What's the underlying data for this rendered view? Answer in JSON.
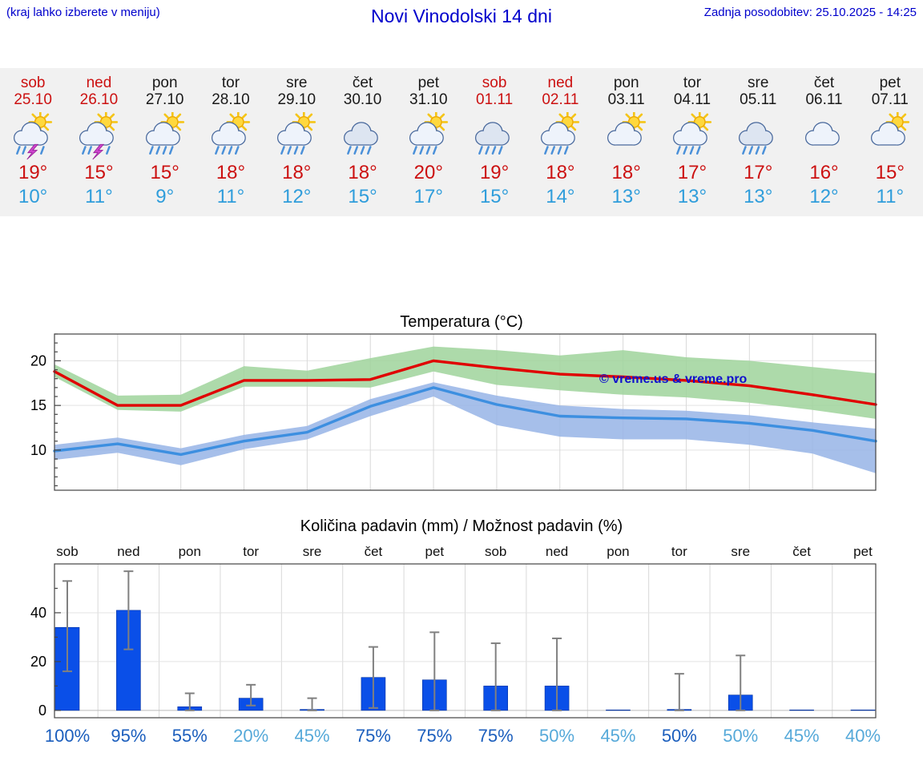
{
  "header": {
    "hint": "(kraj lahko izberete v meniju)",
    "title": "Novi Vinodolski 14 dni",
    "updated": "Zadnja posodobitev: 25.10.2025 - 14:25"
  },
  "colors": {
    "accent_blue": "#0000cc",
    "weekend_red": "#cc1111",
    "weekday_black": "#1a1a1a",
    "tmax_red": "#cc1111",
    "tmin_blue": "#2f9ddb",
    "strip_background": "#f1f1f1",
    "max_line_red": "#e00000",
    "min_line_blue": "#3d8fe0",
    "max_band_green": "#9fd49b",
    "min_band_blue": "#96b4e6",
    "bar_blue": "#0a4fe8",
    "whisker_gray": "#808080",
    "prob_dark_blue": "#1b5ebd",
    "prob_light_blue": "#56a9d9",
    "watermark_blue": "#1111cc"
  },
  "forecast": {
    "days": [
      {
        "name": "sob",
        "date": "25.10",
        "weekend": true,
        "icon": "sun-thunder-rain",
        "tmax": "19°",
        "tmin": "10°"
      },
      {
        "name": "ned",
        "date": "26.10",
        "weekend": true,
        "icon": "sun-thunder-rain",
        "tmax": "15°",
        "tmin": "11°"
      },
      {
        "name": "pon",
        "date": "27.10",
        "weekend": false,
        "icon": "sun-rain",
        "tmax": "15°",
        "tmin": "9°"
      },
      {
        "name": "tor",
        "date": "28.10",
        "weekend": false,
        "icon": "sun-rain",
        "tmax": "18°",
        "tmin": "11°"
      },
      {
        "name": "sre",
        "date": "29.10",
        "weekend": false,
        "icon": "sun-rain",
        "tmax": "18°",
        "tmin": "12°"
      },
      {
        "name": "čet",
        "date": "30.10",
        "weekend": false,
        "icon": "cloud-rain",
        "tmax": "18°",
        "tmin": "15°"
      },
      {
        "name": "pet",
        "date": "31.10",
        "weekend": false,
        "icon": "sun-rain",
        "tmax": "20°",
        "tmin": "17°"
      },
      {
        "name": "sob",
        "date": "01.11",
        "weekend": true,
        "icon": "cloud-rain",
        "tmax": "19°",
        "tmin": "15°"
      },
      {
        "name": "ned",
        "date": "02.11",
        "weekend": true,
        "icon": "sun-rain",
        "tmax": "18°",
        "tmin": "14°"
      },
      {
        "name": "pon",
        "date": "03.11",
        "weekend": false,
        "icon": "sun-cloud",
        "tmax": "18°",
        "tmin": "13°"
      },
      {
        "name": "tor",
        "date": "04.11",
        "weekend": false,
        "icon": "sun-rain",
        "tmax": "17°",
        "tmin": "13°"
      },
      {
        "name": "sre",
        "date": "05.11",
        "weekend": false,
        "icon": "cloud-rain",
        "tmax": "17°",
        "tmin": "13°"
      },
      {
        "name": "čet",
        "date": "06.11",
        "weekend": false,
        "icon": "cloud",
        "tmax": "16°",
        "tmin": "12°"
      },
      {
        "name": "pet",
        "date": "07.11",
        "weekend": false,
        "icon": "sun-cloud",
        "tmax": "15°",
        "tmin": "11°"
      }
    ]
  },
  "chart_data": [
    {
      "type": "line",
      "title": "Temperatura (°C)",
      "categories": [
        "sob",
        "ned",
        "pon",
        "tor",
        "sre",
        "čet",
        "pet",
        "sob",
        "ned",
        "pon",
        "tor",
        "sre",
        "čet",
        "pet"
      ],
      "series": [
        {
          "name": "max-temperature",
          "color": "#e00000",
          "values": [
            18.8,
            15.0,
            15.0,
            17.8,
            17.8,
            17.9,
            20.0,
            19.2,
            18.5,
            18.2,
            17.8,
            17.2,
            16.2,
            15.1
          ]
        },
        {
          "name": "min-temperature",
          "color": "#3d8fe0",
          "values": [
            9.9,
            10.7,
            9.5,
            11.0,
            12.0,
            14.9,
            17.0,
            15.1,
            13.8,
            13.6,
            13.5,
            13.0,
            12.2,
            11.0
          ]
        }
      ],
      "bands": [
        {
          "name": "max-temperature-range",
          "color": "#9fd49b",
          "opacity": 0.85,
          "upper": [
            19.6,
            16.1,
            16.2,
            19.4,
            18.9,
            20.3,
            21.6,
            21.2,
            20.6,
            21.2,
            20.4,
            20.0,
            19.3,
            18.6
          ],
          "lower": [
            18.2,
            14.5,
            14.3,
            17.1,
            17.1,
            17.0,
            18.8,
            17.3,
            16.7,
            16.2,
            15.9,
            15.3,
            14.5,
            13.5
          ]
        },
        {
          "name": "min-temperature-range",
          "color": "#96b4e6",
          "opacity": 0.85,
          "upper": [
            10.6,
            11.4,
            10.2,
            11.7,
            12.7,
            15.7,
            17.6,
            16.1,
            15.0,
            14.6,
            14.4,
            13.9,
            13.1,
            12.4
          ],
          "lower": [
            8.9,
            9.7,
            8.3,
            10.1,
            11.2,
            13.8,
            16.0,
            12.8,
            11.5,
            11.2,
            11.2,
            10.6,
            9.6,
            7.4
          ]
        }
      ],
      "yticks": [
        10,
        15,
        20
      ],
      "ylim": [
        5.5,
        23
      ],
      "grid": true,
      "watermark": "© vreme.us & vreme.pro"
    },
    {
      "type": "bar",
      "title": "Količina padavin (mm) / Možnost padavin (%)",
      "categories": [
        "sob",
        "ned",
        "pon",
        "tor",
        "sre",
        "čet",
        "pet",
        "sob",
        "ned",
        "pon",
        "tor",
        "sre",
        "čet",
        "pet"
      ],
      "values": [
        34,
        41,
        1.5,
        5,
        0.4,
        13.5,
        12.5,
        10,
        10,
        0.2,
        0.4,
        6.3,
        0.2,
        0.2
      ],
      "error_low": [
        16,
        25,
        0,
        2,
        0,
        1,
        0,
        0,
        0,
        0,
        0,
        0,
        0,
        0
      ],
      "error_high": [
        53,
        57,
        7,
        10.5,
        5,
        26,
        32,
        27.5,
        29.5,
        0,
        15,
        22.5,
        0,
        0
      ],
      "probabilities": [
        {
          "label": "100%",
          "color": "#1b5ebd"
        },
        {
          "label": "95%",
          "color": "#1b5ebd"
        },
        {
          "label": "55%",
          "color": "#1b5ebd"
        },
        {
          "label": "20%",
          "color": "#56a9d9"
        },
        {
          "label": "45%",
          "color": "#56a9d9"
        },
        {
          "label": "75%",
          "color": "#1b5ebd"
        },
        {
          "label": "75%",
          "color": "#1b5ebd"
        },
        {
          "label": "75%",
          "color": "#1b5ebd"
        },
        {
          "label": "50%",
          "color": "#56a9d9"
        },
        {
          "label": "45%",
          "color": "#56a9d9"
        },
        {
          "label": "50%",
          "color": "#1b5ebd"
        },
        {
          "label": "50%",
          "color": "#56a9d9"
        },
        {
          "label": "45%",
          "color": "#56a9d9"
        },
        {
          "label": "40%",
          "color": "#56a9d9"
        }
      ],
      "yticks": [
        0,
        20,
        40
      ],
      "ylim": [
        -3,
        60
      ],
      "bar_color": "#0a4fe8",
      "grid": true
    }
  ]
}
